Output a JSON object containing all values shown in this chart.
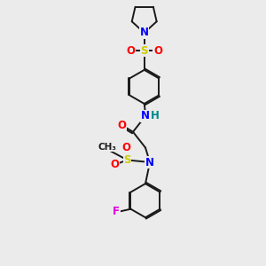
{
  "bg_color": "#ebebeb",
  "bond_color": "#1a1a1a",
  "colors": {
    "N": "#0000ff",
    "O": "#ff0000",
    "S": "#cccc00",
    "F": "#dd00dd",
    "H": "#008888",
    "C": "#1a1a1a"
  },
  "font_size": 8.5,
  "line_width": 1.4
}
